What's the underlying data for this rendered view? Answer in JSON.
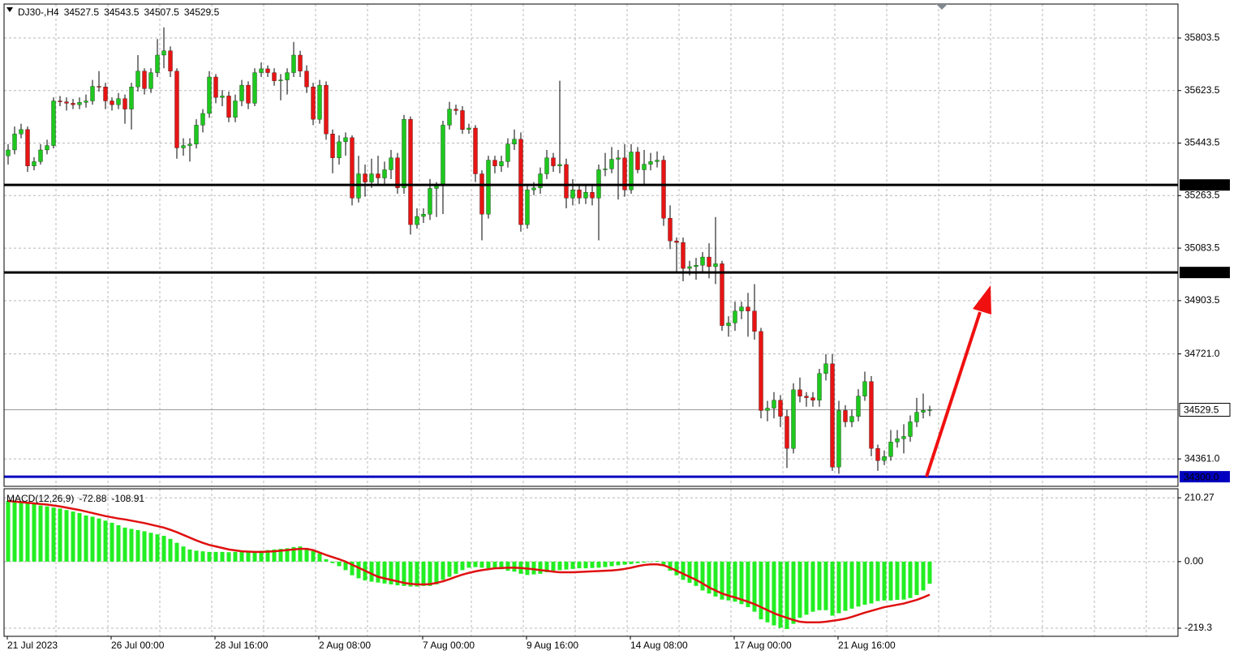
{
  "chart_data": [
    {
      "type": "candlestick",
      "title": "DJ30-,H4",
      "categories": [
        "21 Jul 2023",
        null,
        null,
        null,
        null,
        null,
        null,
        null,
        null,
        null,
        null,
        null,
        null,
        null,
        null,
        null,
        "26 Jul 00:00",
        null,
        null,
        null,
        null,
        null,
        null,
        null,
        null,
        null,
        null,
        null,
        null,
        null,
        null,
        null,
        "28 Jul 16:00",
        null,
        null,
        null,
        null,
        null,
        null,
        null,
        null,
        null,
        null,
        null,
        null,
        null,
        null,
        null,
        "2 Aug 08:00",
        null,
        null,
        null,
        null,
        null,
        null,
        null,
        null,
        null,
        null,
        null,
        null,
        null,
        null,
        null,
        "7 Aug 00:00",
        null,
        null,
        null,
        null,
        null,
        null,
        null,
        null,
        null,
        null,
        null,
        null,
        null,
        null,
        null,
        "9 Aug 16:00",
        null,
        null,
        null,
        null,
        null,
        null,
        null,
        null,
        null,
        null,
        null,
        null,
        null,
        null,
        null,
        "14 Aug 08:00",
        null,
        null,
        null,
        null,
        null,
        null,
        null,
        null,
        null,
        null,
        null,
        null,
        null,
        null,
        null,
        "17 Aug 00:00",
        null,
        null,
        null,
        null,
        null,
        null,
        null,
        null,
        null,
        null,
        null,
        null,
        null,
        null,
        null,
        "21 Aug 16:00",
        null,
        null,
        null,
        null,
        null,
        null,
        null,
        null,
        null,
        null,
        null,
        null,
        null,
        null
      ],
      "open": [
        35400,
        35420,
        35475,
        35490,
        35365,
        35380,
        35420,
        35435,
        35588,
        35585,
        35580,
        35575,
        35583,
        35588,
        35638,
        35636,
        35588,
        35575,
        35596,
        35560,
        35636,
        35690,
        35630,
        35685,
        35745,
        35760,
        35690,
        35427,
        35435,
        35440,
        35505,
        35545,
        35670,
        35600,
        35605,
        35532,
        35588,
        35642,
        35580,
        35685,
        35698,
        35685,
        35657,
        35660,
        35685,
        35745,
        35690,
        35636,
        35525,
        35642,
        35475,
        35393,
        35448,
        35462,
        35255,
        35338,
        35310,
        35338,
        35324,
        35352,
        35393,
        35290,
        35525,
        35164,
        35192,
        35200,
        35288,
        35297,
        35505,
        35560,
        35555,
        35490,
        35495,
        35338,
        35200,
        35385,
        35365,
        35380,
        35440,
        35457,
        35164,
        35283,
        35290,
        35338,
        35393,
        35365,
        35370,
        35255,
        35283,
        35255,
        35275,
        35255,
        35352,
        35355,
        35388,
        35393,
        35283,
        35413,
        35352,
        35371,
        35380,
        35385,
        35186,
        35108,
        35103,
        35014,
        35020,
        35025,
        35053,
        35020,
        35030,
        34818,
        34827,
        34868,
        34882,
        34868,
        34798,
        34527,
        34535,
        34562,
        34507,
        34397,
        34598,
        34576,
        34571,
        34562,
        34654,
        34687,
        34333,
        34527,
        34488,
        34507,
        34576,
        34626,
        34397,
        34355,
        34369,
        34419,
        34430,
        34438,
        34488,
        34521,
        34527.5
      ],
      "high": [
        35440,
        35500,
        35510,
        35500,
        35395,
        35440,
        35455,
        35600,
        35605,
        35600,
        35595,
        35600,
        35610,
        35660,
        35690,
        35650,
        35600,
        35615,
        35610,
        35650,
        35745,
        35700,
        35700,
        35800,
        35840,
        35775,
        35700,
        35460,
        35460,
        35525,
        35560,
        35690,
        35680,
        35625,
        35620,
        35610,
        35660,
        35655,
        35700,
        35720,
        35710,
        35700,
        35680,
        35700,
        35790,
        35760,
        35710,
        35650,
        35660,
        35655,
        35490,
        35470,
        35480,
        35470,
        35400,
        35370,
        35390,
        35400,
        35380,
        35420,
        35410,
        35540,
        35535,
        35220,
        35220,
        35320,
        35310,
        35520,
        35585,
        35575,
        35570,
        35510,
        35505,
        35350,
        35400,
        35400,
        35400,
        35460,
        35490,
        35480,
        35300,
        35310,
        35360,
        35420,
        35410,
        35657,
        35390,
        35320,
        35300,
        35300,
        35300,
        35370,
        35410,
        35430,
        35420,
        35440,
        35440,
        35430,
        35420,
        35410,
        35415,
        35400,
        35230,
        35120,
        35120,
        35040,
        35050,
        35070,
        35100,
        35190,
        35040,
        34850,
        34900,
        34900,
        34930,
        34960,
        34810,
        34560,
        34590,
        34580,
        34530,
        34620,
        34640,
        34590,
        34590,
        34670,
        34720,
        34720,
        34560,
        34545,
        34530,
        34600,
        34660,
        34645,
        34410,
        34390,
        34460,
        34460,
        34480,
        34510,
        34570,
        34585,
        34543.5
      ],
      "low": [
        35370,
        35405,
        35460,
        35345,
        35350,
        35370,
        35405,
        35425,
        35570,
        35555,
        35560,
        35560,
        35565,
        35575,
        35620,
        35560,
        35555,
        35560,
        35510,
        35490,
        35620,
        35610,
        35615,
        35670,
        35700,
        35670,
        35390,
        35400,
        35380,
        35425,
        35480,
        35530,
        35580,
        35570,
        35515,
        35515,
        35570,
        35560,
        35570,
        35670,
        35670,
        35640,
        35590,
        35610,
        35670,
        35670,
        35615,
        35505,
        35510,
        35455,
        35340,
        35370,
        35400,
        35230,
        35240,
        35260,
        35290,
        35300,
        35300,
        35320,
        35270,
        35270,
        35130,
        35150,
        35170,
        35180,
        35190,
        35200,
        35490,
        35540,
        35475,
        35475,
        35310,
        35110,
        35185,
        35340,
        35345,
        35360,
        35420,
        35140,
        35150,
        35265,
        35270,
        35320,
        35345,
        35340,
        35220,
        35230,
        35235,
        35235,
        35230,
        35110,
        35330,
        35340,
        35250,
        35260,
        35270,
        35340,
        35300,
        35350,
        35360,
        35160,
        35080,
        35000,
        34970,
        34990,
        34975,
        35000,
        34980,
        34960,
        34800,
        34780,
        34800,
        34840,
        34780,
        34770,
        34500,
        34490,
        34500,
        34470,
        34330,
        34380,
        34555,
        34540,
        34540,
        34540,
        34630,
        34320,
        34310,
        34470,
        34470,
        34490,
        34560,
        34370,
        34320,
        34340,
        34355,
        34400,
        34380,
        34420,
        34470,
        34500,
        34507.5
      ],
      "close": [
        35420,
        35475,
        35490,
        35365,
        35380,
        35420,
        35435,
        35588,
        35585,
        35580,
        35575,
        35583,
        35588,
        35638,
        35636,
        35588,
        35575,
        35596,
        35560,
        35636,
        35690,
        35630,
        35685,
        35745,
        35760,
        35690,
        35427,
        35435,
        35440,
        35505,
        35545,
        35670,
        35600,
        35605,
        35532,
        35588,
        35642,
        35580,
        35685,
        35698,
        35685,
        35657,
        35660,
        35685,
        35745,
        35690,
        35636,
        35525,
        35642,
        35475,
        35393,
        35448,
        35462,
        35255,
        35338,
        35310,
        35338,
        35324,
        35352,
        35393,
        35290,
        35525,
        35164,
        35192,
        35200,
        35288,
        35297,
        35505,
        35560,
        35555,
        35490,
        35495,
        35338,
        35200,
        35385,
        35365,
        35380,
        35440,
        35457,
        35164,
        35283,
        35290,
        35338,
        35393,
        35365,
        35370,
        35255,
        35283,
        35255,
        35275,
        35255,
        35352,
        35355,
        35388,
        35393,
        35283,
        35413,
        35352,
        35371,
        35380,
        35385,
        35186,
        35108,
        35103,
        35014,
        35020,
        35025,
        35053,
        35020,
        35030,
        34818,
        34827,
        34868,
        34882,
        34868,
        34798,
        34527,
        34535,
        34562,
        34507,
        34397,
        34598,
        34576,
        34571,
        34562,
        34654,
        34687,
        34333,
        34527,
        34488,
        34507,
        34576,
        34626,
        34397,
        34355,
        34369,
        34419,
        34430,
        34438,
        34488,
        34521,
        34527.5,
        34529.5
      ],
      "up_color": "#1ec81e",
      "down_color": "#e81414",
      "wick_color": "#000000",
      "ylim": [
        34267,
        35920
      ],
      "yticks": [
        35803.5,
        35623.5,
        35443.5,
        35263.5,
        35083.5,
        34903.5,
        {
          "value": 34721,
          "label": "34721.0"
        },
        {
          "value": 34361,
          "label": "34361.0"
        }
      ],
      "levels": [
        {
          "value": 35300,
          "label": "35300.0",
          "color": "#000000"
        },
        {
          "value": 35000,
          "label": "35000.0",
          "color": "#000000"
        },
        {
          "value": 34300,
          "label": "34300.0",
          "color": "#0000c0"
        }
      ],
      "grid": true
    },
    {
      "type": "macd",
      "title": "MACD(12,26,9)",
      "histogram": {
        "color": "#22ee22",
        "values": [
          200,
          198,
          196,
          195,
          190,
          185,
          182,
          178,
          175,
          170,
          165,
          160,
          152,
          148,
          142,
          135,
          128,
          120,
          112,
          108,
          104,
          100,
          95,
          90,
          85,
          75,
          62,
          50,
          40,
          36,
          34,
          32,
          32,
          32,
          31,
          32,
          32,
          33,
          35,
          36,
          38,
          40,
          42,
          44,
          48,
          50,
          45,
          35,
          27,
          8,
          -5,
          -15,
          -28,
          -45,
          -55,
          -62,
          -66,
          -69,
          -72,
          -75,
          -78,
          -80,
          -82,
          -82,
          -80,
          -80,
          -75,
          -60,
          -50,
          -40,
          -28,
          -20,
          -18,
          -20,
          -22,
          -20,
          -25,
          -30,
          -33,
          -40,
          -44,
          -42,
          -40,
          -35,
          -30,
          -28,
          -26,
          -24,
          -22,
          -22,
          -21,
          -20,
          -18,
          -15,
          -12,
          -10,
          -8,
          -5,
          -3,
          -1,
          2,
          -10,
          -30,
          -45,
          -60,
          -70,
          -80,
          -95,
          -105,
          -115,
          -125,
          -128,
          -132,
          -140,
          -150,
          -165,
          -190,
          -200,
          -210,
          -218,
          -222,
          -205,
          -185,
          -175,
          -165,
          -160,
          -160,
          -178,
          -170,
          -162,
          -155,
          -148,
          -142,
          -138,
          -130,
          -128,
          -128,
          -126,
          -125,
          -120,
          -110,
          -95,
          -72.88
        ]
      },
      "signal": {
        "color": "#e01010",
        "values": [
          200,
          198,
          196,
          194,
          192,
          190,
          188,
          185,
          182,
          178,
          174,
          170,
          165,
          160,
          155,
          150,
          146,
          142,
          139,
          135,
          131,
          127,
          122,
          117,
          112,
          105,
          97,
          88,
          79,
          70,
          62,
          55,
          50,
          45,
          40,
          37,
          34,
          33,
          32,
          32,
          33,
          34,
          36,
          38,
          40,
          42,
          42,
          38,
          30,
          22,
          15,
          8,
          0,
          -10,
          -20,
          -30,
          -40,
          -50,
          -55,
          -60,
          -65,
          -70,
          -73,
          -75,
          -75,
          -74,
          -70,
          -65,
          -58,
          -50,
          -43,
          -37,
          -32,
          -28,
          -25,
          -22,
          -21,
          -20,
          -20,
          -21,
          -23,
          -25,
          -28,
          -30,
          -33,
          -35,
          -35,
          -35,
          -34,
          -33,
          -32,
          -31,
          -30,
          -29,
          -27,
          -24,
          -20,
          -15,
          -11,
          -9,
          -9,
          -12,
          -20,
          -30,
          -40,
          -50,
          -60,
          -72,
          -85,
          -95,
          -105,
          -112,
          -118,
          -125,
          -132,
          -140,
          -150,
          -160,
          -170,
          -178,
          -185,
          -192,
          -198,
          -200,
          -200,
          -200,
          -198,
          -195,
          -192,
          -188,
          -182,
          -175,
          -168,
          -162,
          -156,
          -150,
          -146,
          -142,
          -138,
          -132,
          -126,
          -118,
          -108.91
        ]
      },
      "ylim": [
        -246,
        240
      ],
      "yticks": [
        210.27,
        {
          "value": 0,
          "label": "0.00"
        },
        -219.3
      ],
      "grid": true
    }
  ]
}
